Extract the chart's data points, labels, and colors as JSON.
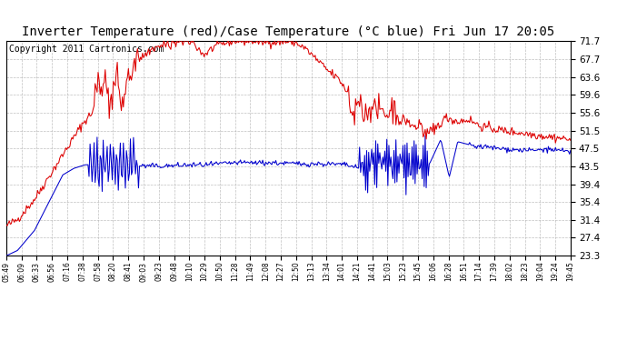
{
  "title": "Inverter Temperature (red)/Case Temperature (°C blue) Fri Jun 17 20:05",
  "copyright": "Copyright 2011 Cartronics.com",
  "y_ticks": [
    23.3,
    27.4,
    31.4,
    35.4,
    39.4,
    43.5,
    47.5,
    51.5,
    55.6,
    59.6,
    63.6,
    67.7,
    71.7
  ],
  "y_min": 23.3,
  "y_max": 71.7,
  "x_labels": [
    "05:49",
    "06:09",
    "06:33",
    "06:56",
    "07:16",
    "07:38",
    "07:58",
    "08:20",
    "08:41",
    "09:03",
    "09:23",
    "09:48",
    "10:10",
    "10:29",
    "10:50",
    "11:28",
    "11:49",
    "12:08",
    "12:27",
    "12:50",
    "13:13",
    "13:34",
    "14:01",
    "14:21",
    "14:41",
    "15:03",
    "15:23",
    "15:45",
    "16:06",
    "16:28",
    "16:51",
    "17:14",
    "17:39",
    "18:02",
    "18:23",
    "19:04",
    "19:24",
    "19:45"
  ],
  "bg_color": "#ffffff",
  "grid_color": "#b0b0b0",
  "red_color": "#dd0000",
  "blue_color": "#0000cc",
  "title_fontsize": 10,
  "copyright_fontsize": 7
}
